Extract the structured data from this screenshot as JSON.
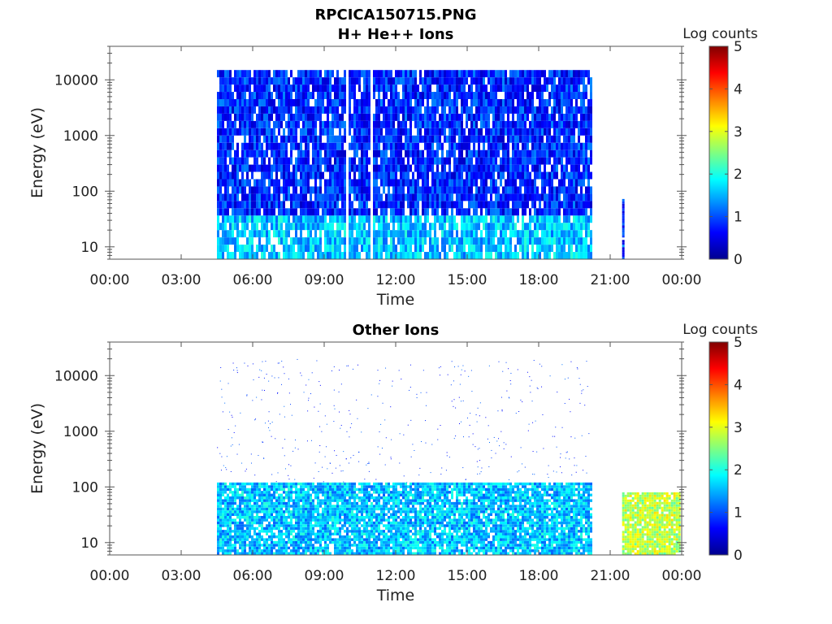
{
  "figure": {
    "title_line1": "RPCICA150715.PNG"
  },
  "colors": {
    "colormap": [
      "#00008f",
      "#0000ff",
      "#0080ff",
      "#00ffff",
      "#80ff80",
      "#ffff00",
      "#ff8000",
      "#ff0000",
      "#800000"
    ],
    "frame": "#555555"
  },
  "chart_data": [
    {
      "type": "heatmap",
      "panel": "top",
      "title": "H+ He++ Ions",
      "xlabel": "Time",
      "ylabel": "Energy (eV)",
      "yscale": "log",
      "ylim": [
        6,
        40000
      ],
      "xlim": [
        "00:00",
        "24:00"
      ],
      "x_tick_labels": [
        "00:00",
        "03:00",
        "06:00",
        "09:00",
        "12:00",
        "15:00",
        "18:00",
        "21:00",
        "00:00"
      ],
      "y_tick_labels": [
        "10",
        "100",
        "1000",
        "10000"
      ],
      "y_tick_values": [
        10,
        100,
        1000,
        10000
      ],
      "colorbar": {
        "label": "Log counts",
        "range": [
          0,
          5
        ],
        "tick_labels": [
          "0",
          "1",
          "2",
          "3",
          "4",
          "5"
        ]
      },
      "data_segments": [
        {
          "start": "04:30",
          "end": "20:10",
          "emin": 6,
          "emax": 15000,
          "level": 0.8,
          "low_energy_max": 40,
          "low_energy_level": 1.6
        },
        {
          "start": "21:30",
          "end": "21:35",
          "emin": 6,
          "emax": 80,
          "level": 0.9
        }
      ],
      "gaps": [
        "09:55",
        "10:55"
      ]
    },
    {
      "type": "heatmap",
      "panel": "bottom",
      "title": "Other Ions",
      "xlabel": "Time",
      "ylabel": "Energy (eV)",
      "yscale": "log",
      "ylim": [
        6,
        40000
      ],
      "xlim": [
        "00:00",
        "24:00"
      ],
      "x_tick_labels": [
        "00:00",
        "03:00",
        "06:00",
        "09:00",
        "12:00",
        "15:00",
        "18:00",
        "21:00",
        "00:00"
      ],
      "y_tick_labels": [
        "10",
        "100",
        "1000",
        "10000"
      ],
      "y_tick_values": [
        10,
        100,
        1000,
        10000
      ],
      "colorbar": {
        "label": "Log counts",
        "range": [
          0,
          5
        ],
        "tick_labels": [
          "0",
          "1",
          "2",
          "3",
          "4",
          "5"
        ]
      },
      "data_segments": [
        {
          "start": "04:30",
          "end": "20:10",
          "emin": 6,
          "emax": 120,
          "level": 1.6,
          "sparse_emax": 20000
        },
        {
          "start": "21:30",
          "end": "23:55",
          "emin": 6,
          "emax": 80,
          "level": 2.8
        }
      ],
      "gaps": []
    }
  ]
}
